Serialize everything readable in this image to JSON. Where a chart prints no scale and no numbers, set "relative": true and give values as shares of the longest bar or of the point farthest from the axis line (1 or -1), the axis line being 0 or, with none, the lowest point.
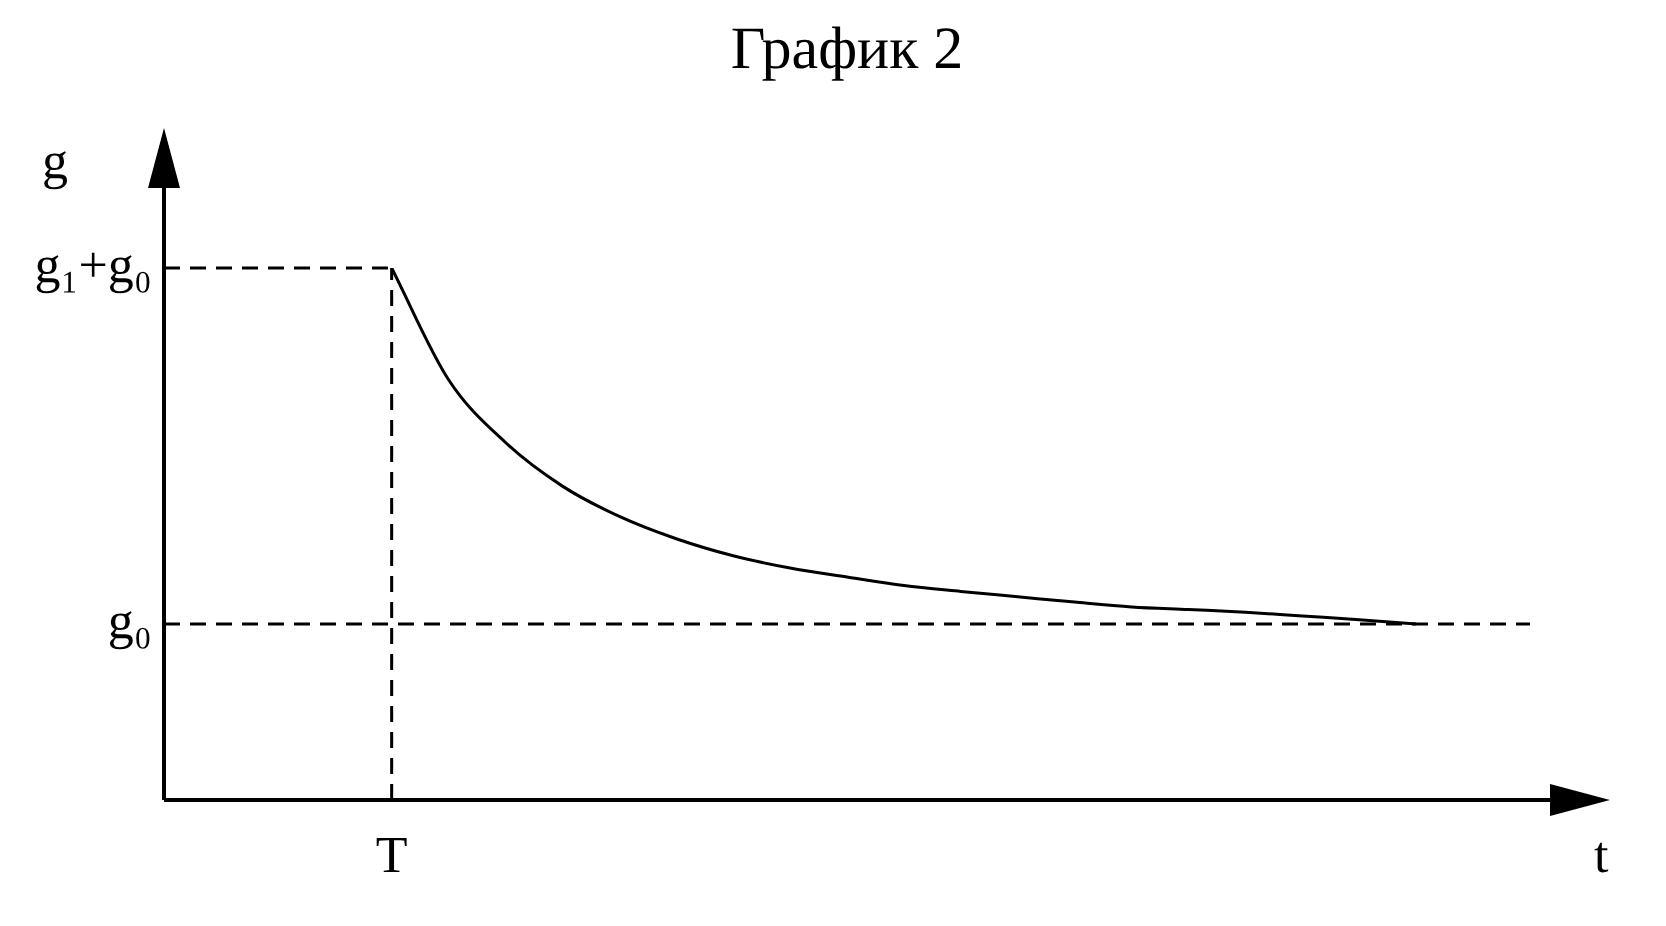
{
  "chart_data": {
    "type": "line",
    "title": "График 2",
    "xlabel": "t",
    "ylabel": "g",
    "relative": true,
    "marker": "none",
    "line_style": "solid",
    "categories": [
      null,
      null,
      null,
      null,
      null,
      null,
      null,
      null,
      null,
      null,
      null,
      null,
      null,
      null,
      null,
      null,
      null,
      null,
      null,
      null,
      null,
      null,
      null,
      null,
      null
    ],
    "series": [
      {
        "color": "#000000",
        "values": [
          null,
          null,
          null,
          null,
          1.0,
          0.79,
          0.672,
          0.59,
          0.533,
          0.491,
          0.459,
          0.436,
          0.419,
          0.403,
          0.392,
          0.382,
          0.372,
          0.363,
          0.358,
          0.353,
          0.346,
          0.339,
          0.331,
          null,
          null
        ]
      }
    ],
    "ref_lines": [
      {
        "axis": "y",
        "value": 0.331,
        "label": "g₀",
        "line_style": "dashed",
        "color": "#000000"
      },
      {
        "axis": "y",
        "value": 1.0,
        "label": "g₁+g₀",
        "line_style": "dashed",
        "color": "#000000"
      },
      {
        "axis": "x",
        "label": "T",
        "line_style": "dashed",
        "color": "#000000"
      }
    ]
  }
}
